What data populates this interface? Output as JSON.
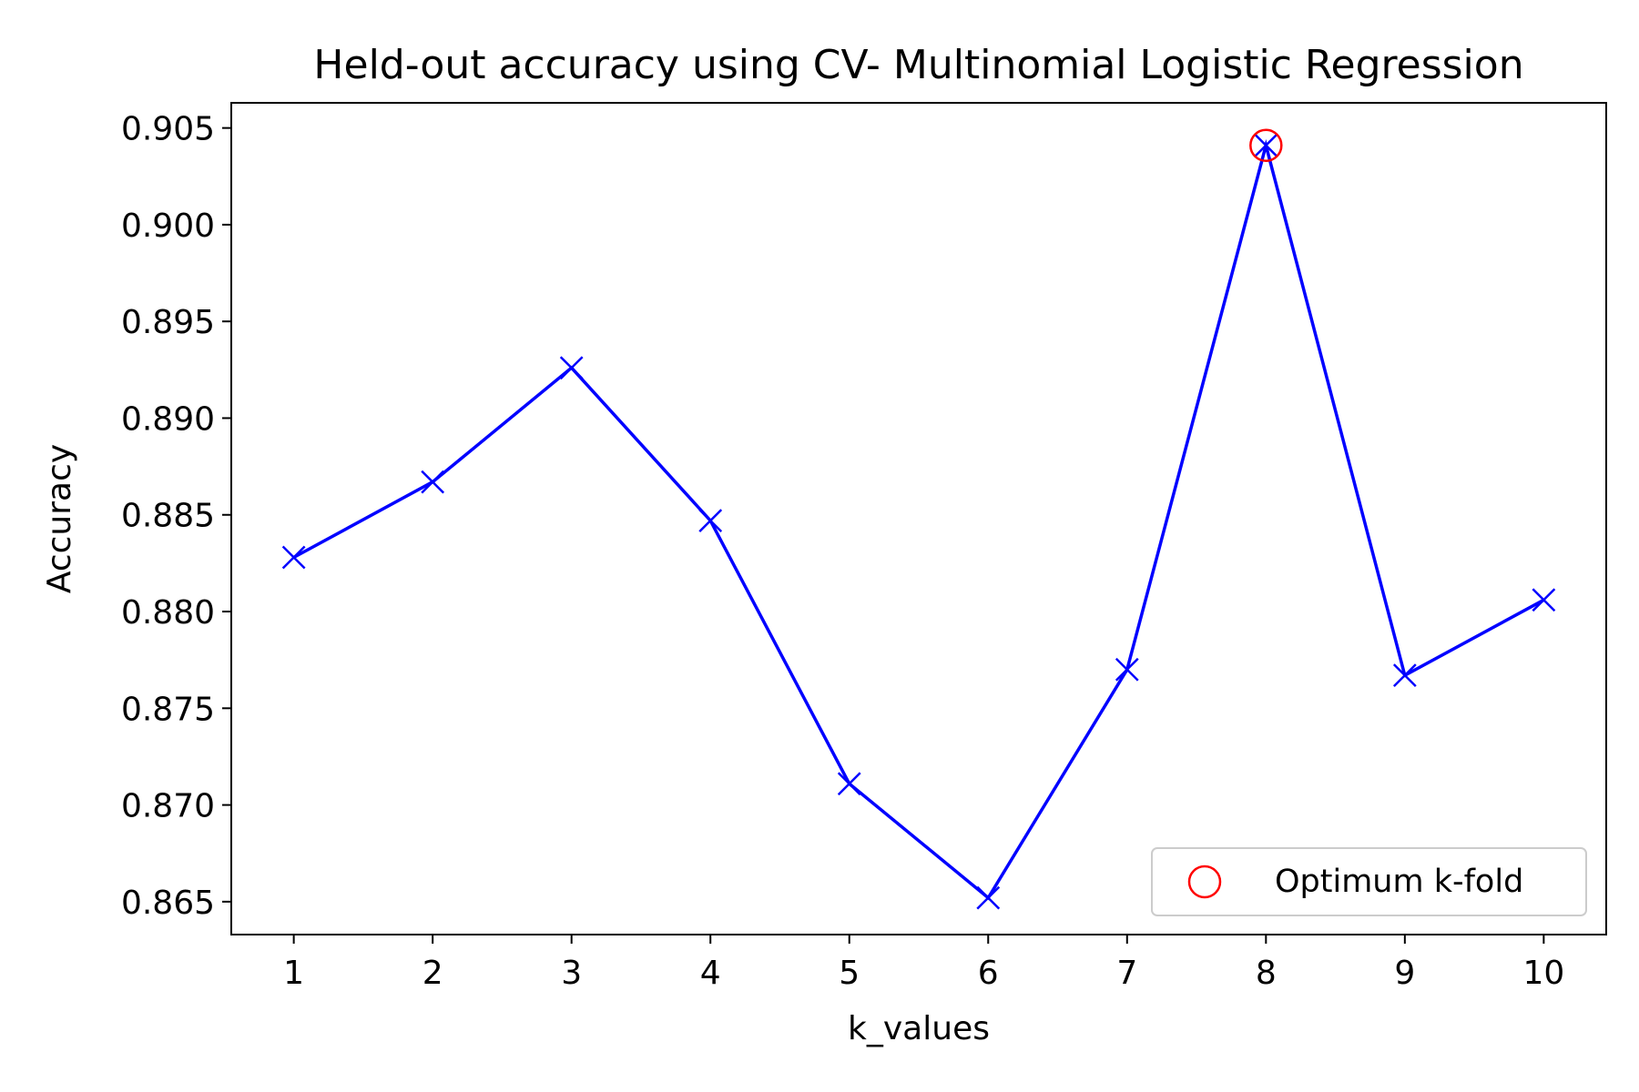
{
  "chart_data": {
    "type": "line",
    "title": "Held-out accuracy using CV- Multinomial Logistic Regression",
    "xlabel": "k_values",
    "ylabel": "Accuracy",
    "x": [
      1,
      2,
      3,
      4,
      5,
      6,
      7,
      8,
      9,
      10
    ],
    "xticks": [
      "1",
      "2",
      "3",
      "4",
      "5",
      "6",
      "7",
      "8",
      "9",
      "10"
    ],
    "yticks": [
      "0.865",
      "0.870",
      "0.875",
      "0.880",
      "0.885",
      "0.890",
      "0.895",
      "0.900",
      "0.905"
    ],
    "ylim": [
      0.8633,
      0.9063
    ],
    "xlim": [
      0.55,
      10.45
    ],
    "grid": false,
    "series": [
      {
        "values": [
          0.8828,
          0.8867,
          0.8926,
          0.8847,
          0.8711,
          0.8652,
          0.877,
          0.9041,
          0.8767,
          0.8806
        ],
        "color": "#0000ff",
        "marker": "x"
      }
    ],
    "highlight": {
      "name": "Optimum k-fold",
      "x": 8,
      "y": 0.9041,
      "color": "#ff0000",
      "marker": "circle-open"
    },
    "legend": {
      "placement": "lower-right",
      "entries": [
        "Optimum k-fold"
      ]
    }
  }
}
